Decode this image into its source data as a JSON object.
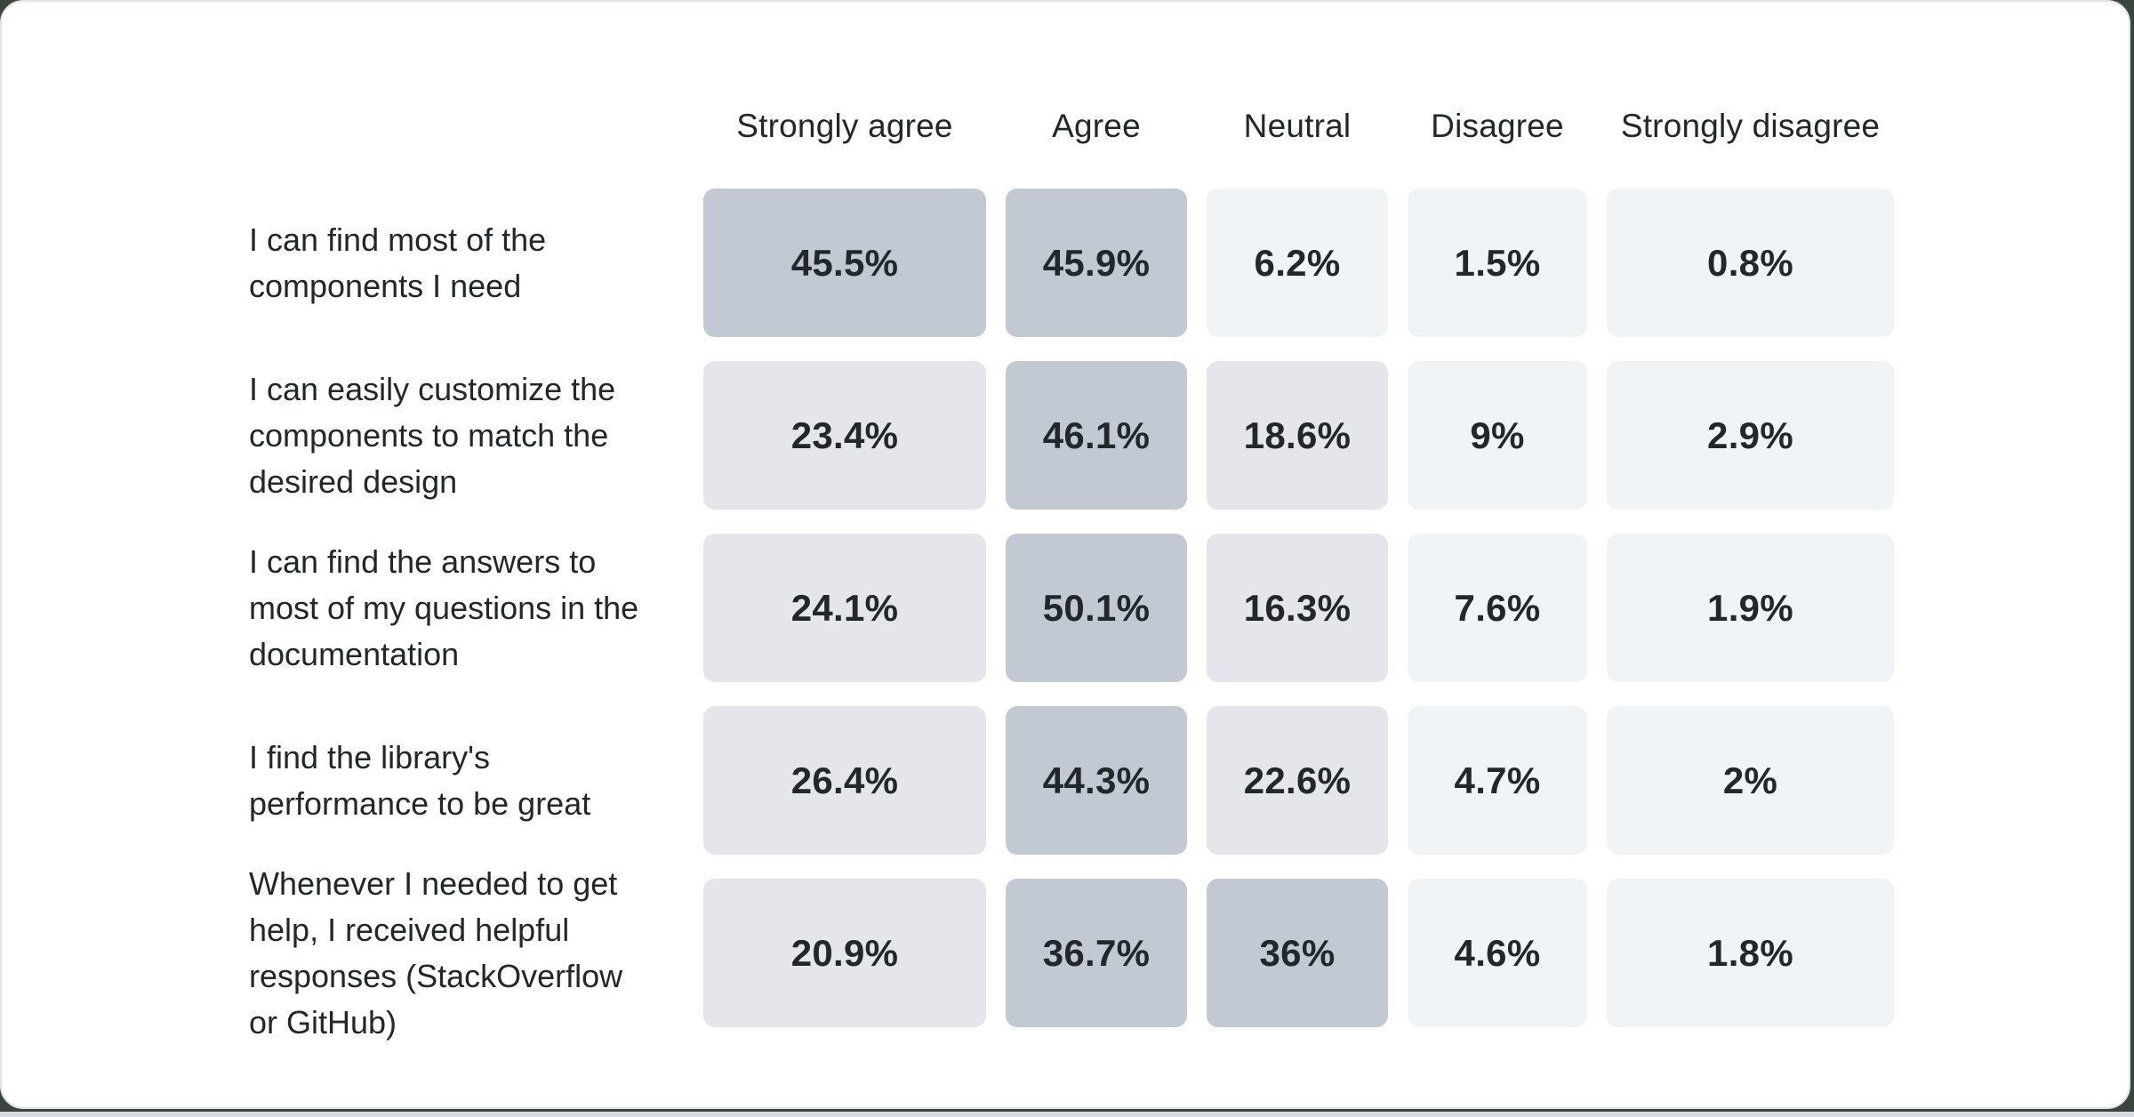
{
  "page": {
    "background": "#39453d",
    "card_background": "#ffffff",
    "card_border": "#e2e5e8",
    "bottom_strip_color": "#d8dce1",
    "text_color": "#21272a"
  },
  "chart_data": {
    "type": "heatmap",
    "title": "",
    "columns": [
      "Strongly agree",
      "Agree",
      "Neutral",
      "Disagree",
      "Strongly disagree"
    ],
    "rows": [
      {
        "label": "I can find most of the components I need",
        "values": [
          45.5,
          45.9,
          6.2,
          1.5,
          0.8
        ],
        "display": [
          "45.5%",
          "45.9%",
          "6.2%",
          "1.5%",
          "0.8%"
        ]
      },
      {
        "label": "I can easily customize the components to match the desired design",
        "values": [
          23.4,
          46.1,
          18.6,
          9,
          2.9
        ],
        "display": [
          "23.4%",
          "46.1%",
          "18.6%",
          "9%",
          "2.9%"
        ]
      },
      {
        "label": "I can find the answers to most of my questions in the documentation",
        "values": [
          24.1,
          50.1,
          16.3,
          7.6,
          1.9
        ],
        "display": [
          "24.1%",
          "50.1%",
          "16.3%",
          "7.6%",
          "1.9%"
        ]
      },
      {
        "label": "I find the library's performance to be great",
        "values": [
          26.4,
          44.3,
          22.6,
          4.7,
          2
        ],
        "display": [
          "26.4%",
          "44.3%",
          "22.6%",
          "4.7%",
          "2%"
        ]
      },
      {
        "label": "Whenever I needed to get help, I received helpful responses (StackOverflow or GitHub)",
        "values": [
          20.9,
          36.7,
          36,
          4.6,
          1.8
        ],
        "display": [
          "20.9%",
          "36.7%",
          "36%",
          "4.6%",
          "1.8%"
        ]
      }
    ],
    "color_scale": {
      "bins": [
        {
          "min": 30,
          "color": "#c3c9d2"
        },
        {
          "min": 10,
          "color": "#e4e6eb"
        },
        {
          "min": 0,
          "color": "#f1f4f7"
        }
      ]
    },
    "legend_position": "none",
    "grid": false,
    "value_unit": "%"
  }
}
